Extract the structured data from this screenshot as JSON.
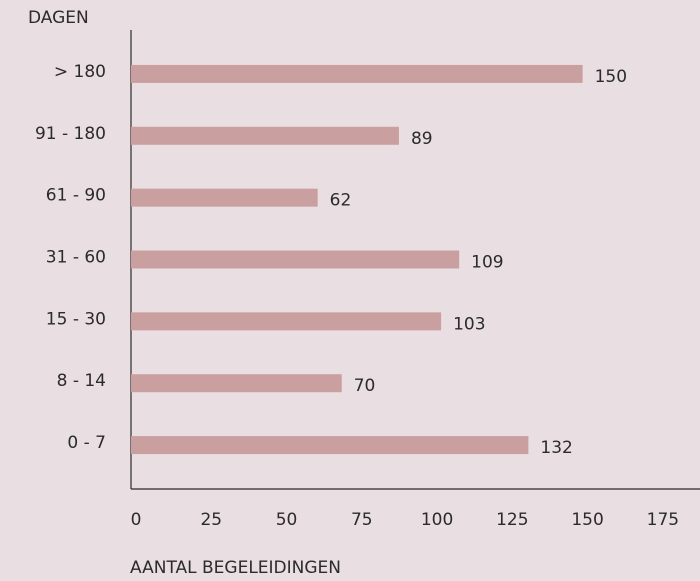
{
  "chart_data": {
    "type": "bar",
    "orientation": "horizontal",
    "y_label": "DAGEN",
    "x_label": "AANTAL BEGELEIDINGEN",
    "categories": [
      "> 180",
      "91 - 180",
      "61 - 90",
      "31 - 60",
      "15 - 30",
      "8 - 14",
      "0 - 7"
    ],
    "values": [
      150,
      89,
      62,
      109,
      103,
      70,
      132
    ],
    "color": "#c9a09f",
    "xlim": [
      0,
      189
    ],
    "xticks": [
      0,
      25,
      50,
      75,
      100,
      125,
      150,
      175
    ],
    "grid": false
  }
}
